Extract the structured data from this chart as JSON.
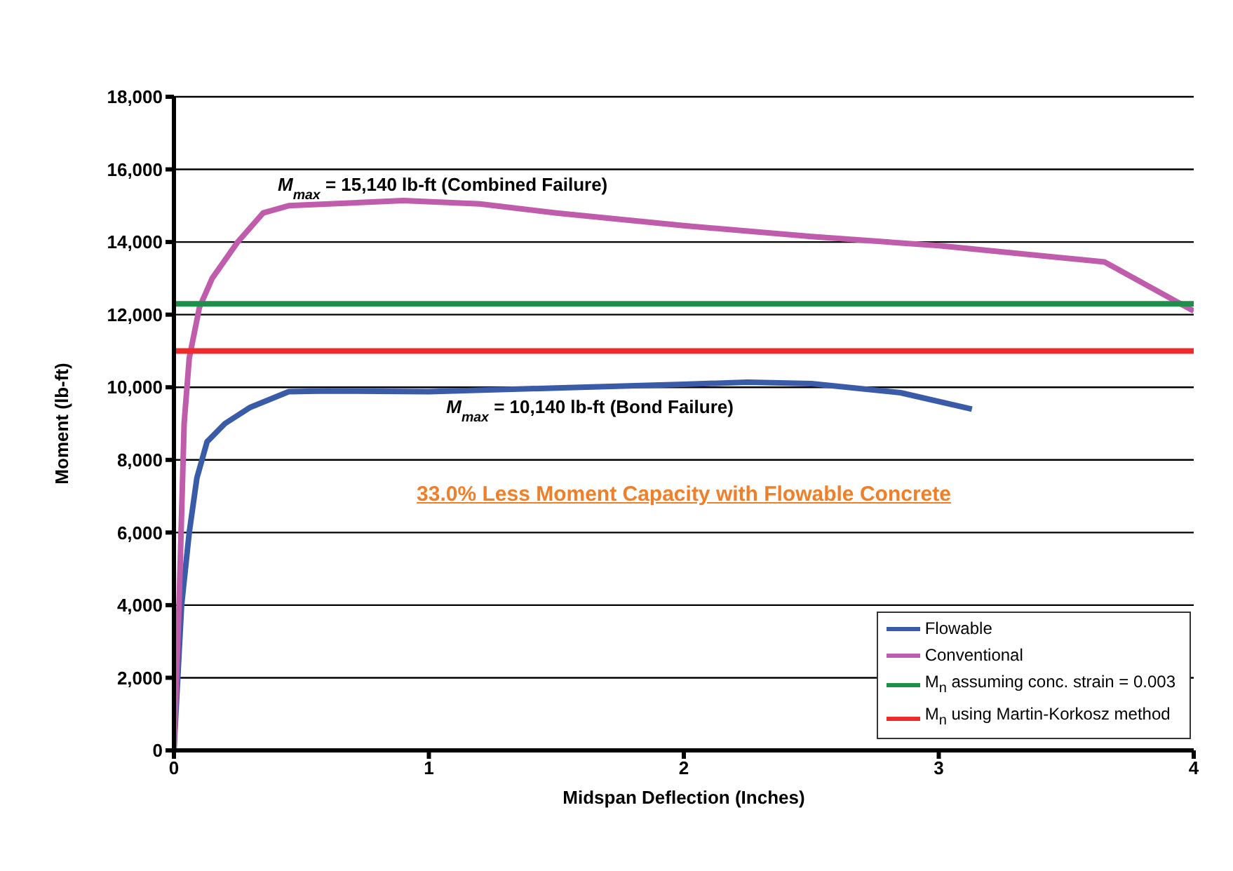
{
  "chart_data": {
    "type": "line",
    "xlabel": "Midspan Deflection (Inches)",
    "ylabel": "Moment (lb-ft)",
    "xlim": [
      0,
      4
    ],
    "xticks": [
      0,
      1,
      2,
      3,
      4
    ],
    "ylim": [
      0,
      18000
    ],
    "yticks": [
      0,
      {
        "value": 2000,
        "label": "2,000"
      },
      {
        "value": 4000,
        "label": "4,000"
      },
      {
        "value": 6000,
        "label": "6,000"
      },
      {
        "value": 8000,
        "label": "8,000"
      },
      {
        "value": 10000,
        "label": "10,000"
      },
      {
        "value": 12000,
        "label": "12,000"
      },
      {
        "value": 14000,
        "label": "14,000"
      },
      {
        "value": 16000,
        "label": "16,000"
      },
      {
        "value": 18000,
        "label": "18,000"
      }
    ],
    "grid": "y",
    "legend": "bottom right",
    "marker": "none",
    "line_style": "solid",
    "series": [
      {
        "name": "Flowable",
        "color": "#3a5ba8",
        "x": [
          0,
          0.03,
          0.06,
          0.09,
          0.13,
          0.2,
          0.3,
          0.45,
          0.6,
          1,
          1.5,
          2,
          2.25,
          2.5,
          2.85,
          3.13
        ],
        "values": [
          0,
          4000,
          6000,
          7500,
          8500,
          9000,
          9450,
          9880,
          9900,
          9880,
          9980,
          10080,
          10140,
          10100,
          9850,
          9400
        ]
      },
      {
        "name": "Conventional",
        "color": "#c05cac",
        "x": [
          0,
          0.02,
          0.04,
          0.06,
          0.1,
          0.15,
          0.25,
          0.35,
          0.45,
          0.9,
          1.2,
          1.5,
          2,
          2.5,
          3,
          3.65,
          4
        ],
        "values": [
          0,
          4000,
          9000,
          10800,
          12200,
          13000,
          14000,
          14800,
          15000,
          15140,
          15050,
          14800,
          14450,
          14150,
          13900,
          13450,
          12100
        ]
      },
      {
        "name": "M$_{n}$ assuming conc. strain = 0.003",
        "color": "#1e8f4a",
        "x": [
          0,
          4
        ],
        "values": [
          12300,
          12300
        ]
      },
      {
        "name": "M$_{n}$ using Martin-Korkosz method",
        "color": "#ee2a2a",
        "x": [
          0,
          4
        ],
        "values": [
          11000,
          11000
        ]
      }
    ],
    "annotations": [
      {
        "text": "M$_{max}$ = 15,140 lb-ft (Combined Failure)",
        "x": 0.9,
        "y": 15140
      },
      {
        "text": "M$_{max}$ = 10,140 lb-ft (Bond Failure)",
        "x": 2.25,
        "y": 10140
      },
      "33.0% Less Moment Capacity with Flowable Concrete"
    ]
  }
}
